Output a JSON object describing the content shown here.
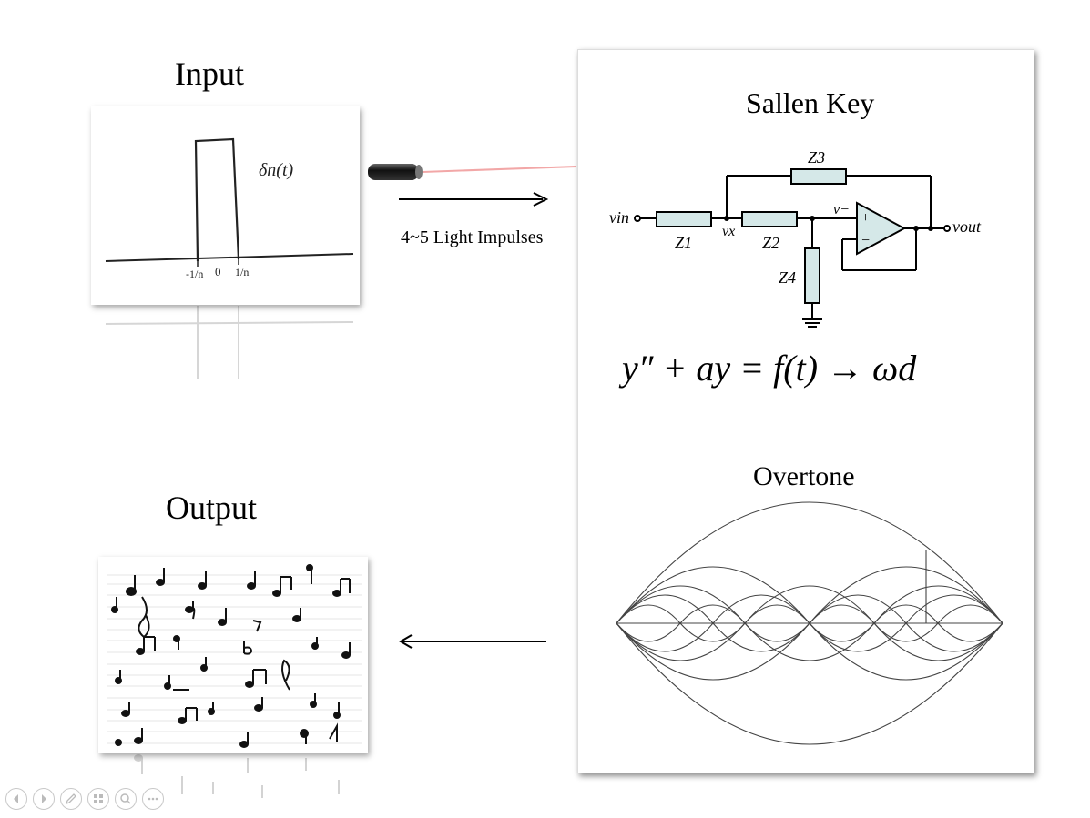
{
  "input": {
    "title": "Input",
    "signal_label": "δn(t)",
    "ticks": [
      "-1/n",
      "0",
      "1/n"
    ]
  },
  "arrows": {
    "impulse_label": "4~5 Light Impulses"
  },
  "circuit": {
    "title": "Sallen Key",
    "vin": "vin",
    "vx": "vx",
    "vminus": "v−",
    "vout": "vout",
    "z1": "Z1",
    "z2": "Z2",
    "z3": "Z3",
    "z4": "Z4",
    "plus": "+",
    "minus": "−"
  },
  "equation": {
    "text": "y″ + ay = f(t) → ωd"
  },
  "overtone": {
    "title": "Overtone"
  },
  "output": {
    "title": "Output"
  },
  "toolbar": {
    "icons": [
      "prev-icon",
      "next-icon",
      "pen-icon",
      "slides-icon",
      "zoom-icon",
      "more-icon"
    ]
  }
}
